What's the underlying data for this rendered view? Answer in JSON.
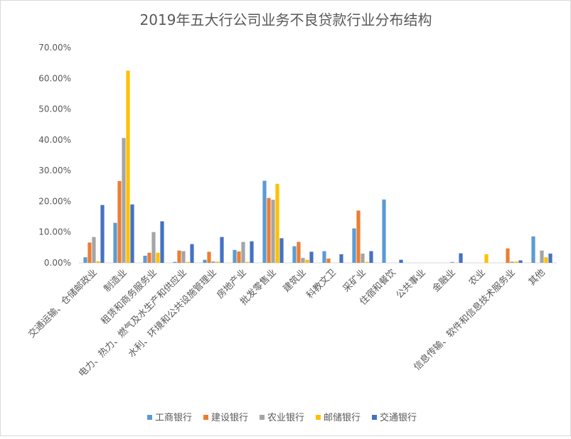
{
  "chart_data": {
    "type": "bar",
    "title": "2019年五大行公司业务不良贷款行业分布结构",
    "xlabel": "",
    "ylabel": "",
    "ylim": [
      0,
      70
    ],
    "yticks": [
      "0.00%",
      "10.00%",
      "20.00%",
      "30.00%",
      "40.00%",
      "50.00%",
      "60.00%",
      "70.00%"
    ],
    "grid": false,
    "legend_position": "bottom",
    "categories": [
      "交通运输、仓储邮政业",
      "制造业",
      "租赁和商务服务业",
      "电力、热力、燃气及水生产和供应业",
      "水利、环境和公共设施管理业",
      "房地产业",
      "批发零售业",
      "建筑业",
      "科教文卫",
      "采矿业",
      "住宿和餐饮",
      "公共事业",
      "金融业",
      "农业",
      "信息传输、软件和信息技术服务业",
      "其他"
    ],
    "series": [
      {
        "name": "工商银行",
        "color": "#5B9BD5",
        "values": [
          1.8,
          13.0,
          2.3,
          0.3,
          1.0,
          4.2,
          26.7,
          5.4,
          3.8,
          11.2,
          20.6,
          0,
          0,
          0,
          0,
          8.6
        ]
      },
      {
        "name": "建设银行",
        "color": "#ED7D31",
        "values": [
          6.6,
          26.6,
          3.3,
          4.0,
          3.6,
          3.7,
          21.1,
          6.8,
          1.4,
          17.0,
          0,
          0,
          0,
          0,
          4.7,
          0
        ]
      },
      {
        "name": "农业银行",
        "color": "#A5A5A5",
        "values": [
          8.4,
          40.6,
          10.0,
          3.8,
          0.5,
          6.8,
          20.5,
          1.6,
          0,
          3.0,
          0,
          0,
          0.3,
          0,
          0.4,
          4.0
        ]
      },
      {
        "name": "邮储银行",
        "color": "#FFC000",
        "values": [
          0.5,
          62.5,
          3.3,
          0.3,
          0.4,
          0.3,
          25.7,
          1.0,
          0,
          0.3,
          0,
          0,
          0,
          2.8,
          0.4,
          1.8
        ]
      },
      {
        "name": "交通银行",
        "color": "#4472C4",
        "values": [
          18.8,
          19.0,
          13.5,
          6.1,
          8.4,
          7.0,
          8.0,
          3.6,
          2.8,
          3.8,
          1.0,
          0,
          3.1,
          0,
          0.8,
          3.0
        ]
      }
    ]
  }
}
